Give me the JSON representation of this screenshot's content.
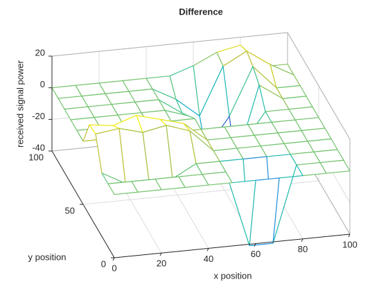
{
  "chart_data": {
    "type": "mesh",
    "title": "Difference",
    "xlabel": "x position",
    "ylabel": "y position",
    "zlabel": "received signal power",
    "x": [
      0,
      10,
      20,
      30,
      40,
      50,
      60,
      70,
      80,
      90,
      100
    ],
    "y": [
      0,
      10,
      20,
      30,
      40,
      50,
      60,
      70,
      80,
      90,
      100
    ],
    "z": [
      [
        0,
        0,
        0,
        0,
        0,
        0,
        0,
        0,
        0,
        0,
        0
      ],
      [
        0,
        0,
        0,
        0,
        0,
        0,
        -48,
        -48,
        0,
        0,
        0
      ],
      [
        0,
        -8,
        -8,
        -8,
        0,
        0,
        0,
        0,
        0,
        0,
        0
      ],
      [
        18,
        20,
        16,
        19,
        14,
        0,
        0,
        0,
        0,
        0,
        0
      ],
      [
        17,
        15,
        20,
        16,
        12,
        0,
        0,
        0,
        0,
        0,
        0
      ],
      [
        0,
        0,
        0,
        0,
        0,
        0,
        0,
        0,
        0,
        0,
        0
      ],
      [
        0,
        0,
        0,
        0,
        0,
        0,
        -30,
        -20,
        0,
        0,
        0
      ],
      [
        0,
        0,
        0,
        0,
        0,
        -5,
        -40,
        -38,
        10,
        0,
        0
      ],
      [
        0,
        0,
        0,
        0,
        0,
        -10,
        -35,
        -15,
        15,
        0,
        0
      ],
      [
        0,
        0,
        0,
        0,
        0,
        -8,
        -20,
        10,
        18,
        8,
        0
      ],
      [
        0,
        0,
        0,
        0,
        0,
        0,
        5,
        12,
        15,
        0,
        0
      ]
    ],
    "xlim": [
      0,
      100
    ],
    "ylim": [
      0,
      100
    ],
    "zlim": [
      -40,
      20
    ],
    "xticks": [
      0,
      20,
      40,
      60,
      80,
      100
    ],
    "yticks": [
      0,
      50,
      100
    ],
    "zticks": [
      -40,
      -20,
      0,
      20
    ],
    "grid": true,
    "colormap": [
      "#3e26a8",
      "#2f7fee",
      "#17b7c5",
      "#4ac58c",
      "#c4c030",
      "#f9fb0e"
    ]
  }
}
